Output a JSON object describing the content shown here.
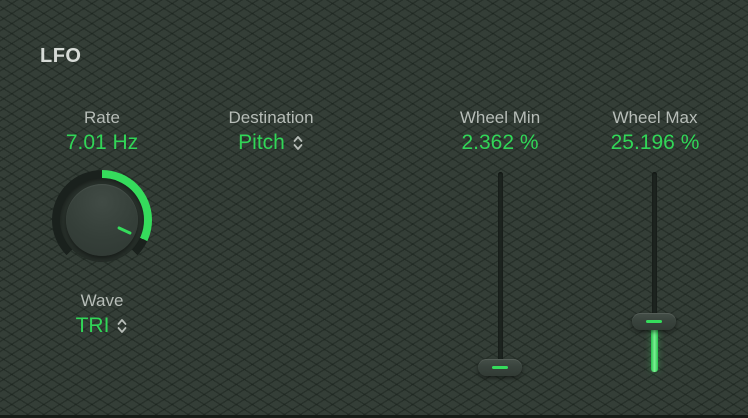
{
  "panel": {
    "title": "LFO"
  },
  "colors": {
    "accent_green": "#31d657",
    "label_gray": "#b7bdb8",
    "background_green": "#343e37"
  },
  "rate": {
    "label": "Rate",
    "value": "7.01 Hz",
    "knob_arc_degrees": 115
  },
  "wave": {
    "label": "Wave",
    "value": "TRI"
  },
  "destination": {
    "label": "Destination",
    "value": "Pitch"
  },
  "wheel_min": {
    "label": "Wheel Min",
    "value": "2.362 %",
    "percent": 2.362
  },
  "wheel_max": {
    "label": "Wheel Max",
    "value": "25.196 %",
    "percent": 25.196
  }
}
